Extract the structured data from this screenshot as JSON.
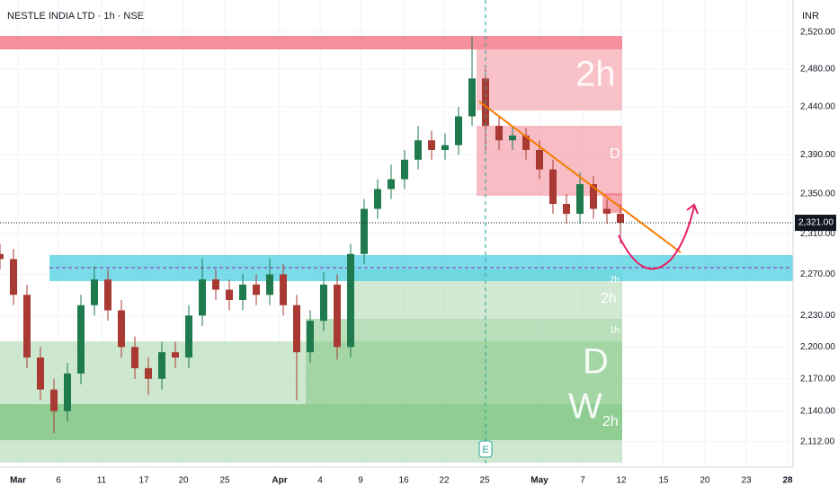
{
  "chart_data": {
    "type": "candlestick",
    "title": "NESTLE INDIA LTD · 1h · NSE",
    "currency": "INR",
    "earnings_marker": "E",
    "last_price": {
      "value": 2321,
      "label": "2,321.00"
    },
    "log_scale": true,
    "grid": true,
    "up_color": "#1f7a4d",
    "down_color": "#a93a33",
    "xlim": [
      0,
      88
    ],
    "xticks": [
      {
        "value": 2,
        "label": "Mar"
      },
      {
        "value": 6.5,
        "label": "6"
      },
      {
        "value": 11.3,
        "label": "11"
      },
      {
        "value": 16,
        "label": "17"
      },
      {
        "value": 20.4,
        "label": "20"
      },
      {
        "value": 25,
        "label": "25"
      },
      {
        "value": 31.1,
        "label": "Apr"
      },
      {
        "value": 35.6,
        "label": "4"
      },
      {
        "value": 40.1,
        "label": "9"
      },
      {
        "value": 44.9,
        "label": "16"
      },
      {
        "value": 49.4,
        "label": "22"
      },
      {
        "value": 53.9,
        "label": "25"
      },
      {
        "value": 60,
        "label": "May"
      },
      {
        "value": 64.8,
        "label": "7"
      },
      {
        "value": 69.1,
        "label": "12"
      },
      {
        "value": 73.8,
        "label": "15"
      },
      {
        "value": 78.4,
        "label": "20"
      },
      {
        "value": 83,
        "label": "23"
      },
      {
        "value": 87.6,
        "label": "28"
      }
    ],
    "ylim": [
      2089,
      2555
    ],
    "yticks": [
      {
        "value": 2520,
        "label": "2,520.00"
      },
      {
        "value": 2480,
        "label": "2,480.00"
      },
      {
        "value": 2440,
        "label": "2,440.00"
      },
      {
        "value": 2390,
        "label": "2,390.00"
      },
      {
        "value": 2350,
        "label": "2,350.00"
      },
      {
        "value": 2310,
        "label": "2,310.00"
      },
      {
        "value": 2270,
        "label": "2,270.00"
      },
      {
        "value": 2230,
        "label": "2,230.00"
      },
      {
        "value": 2200,
        "label": "2,200.00"
      },
      {
        "value": 2170,
        "label": "2,170.00"
      },
      {
        "value": 2140,
        "label": "2,140.00"
      },
      {
        "value": 2112,
        "label": "2,112.00"
      }
    ],
    "x": [
      0,
      1.5,
      3,
      4.5,
      6,
      7.5,
      9,
      10.5,
      12,
      13.5,
      15,
      16.5,
      18,
      19.5,
      21,
      22.5,
      24,
      25.5,
      27,
      28.5,
      30,
      31.5,
      33,
      34.5,
      36,
      37.5,
      39,
      40.5,
      42,
      43.5,
      45,
      46.5,
      48,
      49.5,
      51,
      52.5,
      54,
      55.5,
      57,
      58.5,
      60,
      61.5,
      63,
      64.5,
      66,
      67.5,
      69
    ],
    "open": [
      2290,
      2285,
      2250,
      2190,
      2160,
      2140,
      2175,
      2240,
      2265,
      2235,
      2200,
      2180,
      2170,
      2195,
      2190,
      2230,
      2265,
      2255,
      2245,
      2260,
      2250,
      2270,
      2240,
      2195,
      2225,
      2260,
      2200,
      2290,
      2335,
      2355,
      2365,
      2385,
      2405,
      2395,
      2400,
      2430,
      2470,
      2420,
      2405,
      2410,
      2395,
      2375,
      2340,
      2330,
      2360,
      2335,
      2330
    ],
    "high": [
      2300,
      2295,
      2260,
      2200,
      2170,
      2185,
      2250,
      2278,
      2275,
      2245,
      2210,
      2190,
      2205,
      2205,
      2240,
      2285,
      2275,
      2265,
      2270,
      2270,
      2285,
      2280,
      2250,
      2235,
      2272,
      2270,
      2300,
      2345,
      2365,
      2380,
      2395,
      2420,
      2415,
      2412,
      2440,
      2515,
      2480,
      2430,
      2420,
      2418,
      2405,
      2385,
      2350,
      2372,
      2368,
      2345,
      2340
    ],
    "low": [
      2275,
      2240,
      2180,
      2150,
      2120,
      2130,
      2165,
      2230,
      2225,
      2190,
      2170,
      2155,
      2160,
      2180,
      2180,
      2220,
      2245,
      2235,
      2235,
      2240,
      2240,
      2230,
      2150,
      2185,
      2215,
      2188,
      2190,
      2280,
      2325,
      2345,
      2355,
      2375,
      2385,
      2385,
      2390,
      2420,
      2395,
      2395,
      2395,
      2385,
      2365,
      2330,
      2320,
      2320,
      2325,
      2320,
      2300
    ],
    "close": [
      2285,
      2250,
      2190,
      2160,
      2140,
      2175,
      2240,
      2265,
      2235,
      2200,
      2180,
      2170,
      2195,
      2190,
      2230,
      2265,
      2255,
      2245,
      2260,
      2250,
      2270,
      2240,
      2195,
      2225,
      2260,
      2200,
      2290,
      2335,
      2355,
      2365,
      2385,
      2405,
      2395,
      2400,
      2430,
      2470,
      2420,
      2405,
      2410,
      2395,
      2375,
      2340,
      2330,
      2360,
      2335,
      2330,
      2321
    ],
    "zone_labels": [
      "2h",
      "D",
      "2h",
      "2h",
      "1h",
      "D",
      "W",
      "2h"
    ]
  }
}
